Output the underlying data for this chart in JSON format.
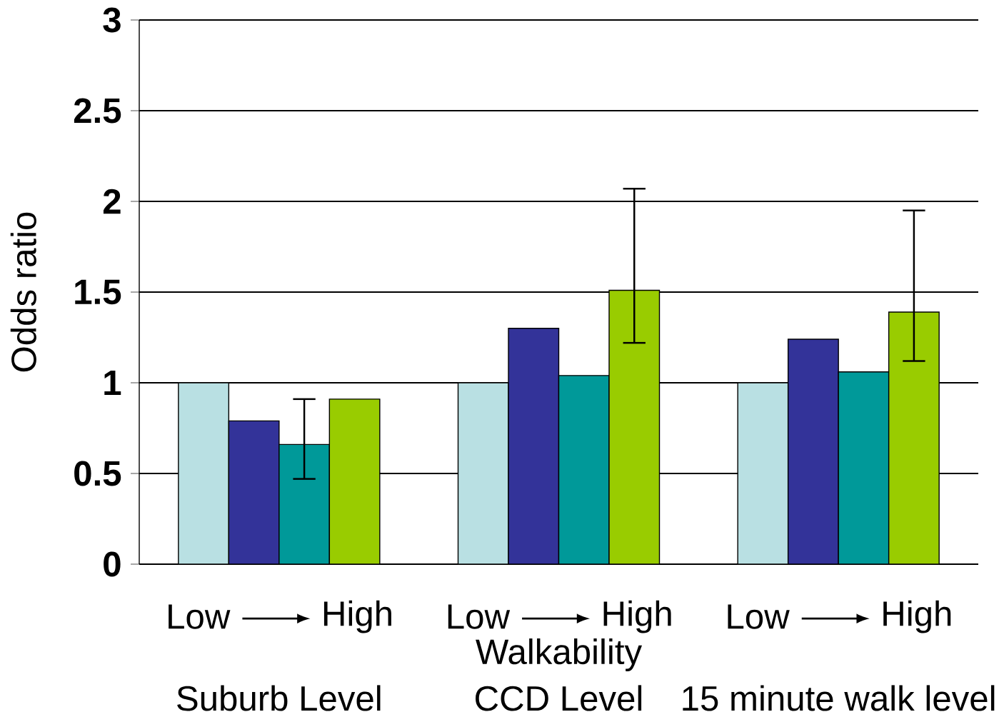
{
  "chart_data": {
    "type": "bar",
    "xlabel": "Walkability",
    "ylabel": "Odds ratio",
    "categories": [
      "Suburb Level",
      "CCD Level",
      "15 minute walk level"
    ],
    "series": [
      {
        "color": "#b9e0e3",
        "values": [
          1.0,
          1.0,
          1.0
        ]
      },
      {
        "color": "#333399",
        "values": [
          0.79,
          1.3,
          1.24
        ]
      },
      {
        "color": "#009999",
        "values": [
          0.66,
          1.04,
          1.06
        ],
        "errors": [
          [
            0.47,
            0.91
          ],
          null,
          null
        ]
      },
      {
        "color": "#99cc00",
        "values": [
          0.91,
          1.51,
          1.39
        ],
        "errors": [
          null,
          [
            1.22,
            2.07
          ],
          [
            1.12,
            1.95
          ]
        ]
      }
    ],
    "ylim": [
      0,
      3
    ],
    "yticks": [
      0,
      0.5,
      1,
      1.5,
      2,
      2.5,
      3
    ],
    "grid": "y",
    "annotations": [
      "Low",
      "High",
      "Low",
      "High",
      "Low",
      "High"
    ]
  }
}
